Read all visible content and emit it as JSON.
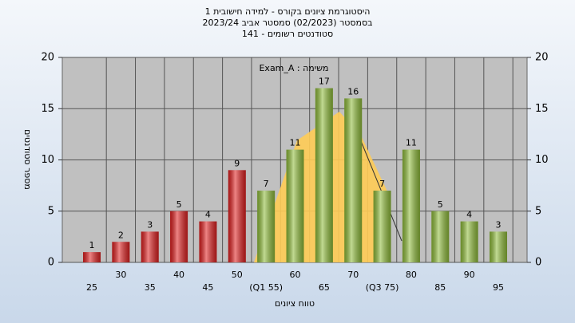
{
  "title_lines": [
    "היסטוגרמת ציונים בקורס - למידה חישובית 1",
    "בסמסטר (02/2023) סמסטר אביב 2023/24",
    "סטודנטים רשומים - 141"
  ],
  "chart_data": {
    "type": "bar",
    "annotation": "Exam_A : משימה",
    "x_label": "טווח ציונים",
    "y_label": "מספר סטודנטים",
    "categories": [
      "25",
      "30",
      "35",
      "40",
      "45",
      "50",
      "(Q1 55)",
      "60",
      "65",
      "70",
      "(Q3 75)",
      "80",
      "85",
      "90",
      "95"
    ],
    "values": [
      1,
      2,
      3,
      5,
      4,
      9,
      7,
      11,
      17,
      16,
      7,
      11,
      5,
      4,
      3
    ],
    "colors": [
      "#e02020",
      "#e02020",
      "#e02020",
      "#e02020",
      "#e02020",
      "#e02020",
      "#8fbc3a",
      "#8fbc3a",
      "#8fbc3a",
      "#8fbc3a",
      "#8fbc3a",
      "#8fbc3a",
      "#8fbc3a",
      "#8fbc3a",
      "#8fbc3a"
    ],
    "ylim": [
      0,
      20
    ],
    "yticks": [
      0,
      5,
      10,
      15,
      20
    ],
    "grid": true
  }
}
